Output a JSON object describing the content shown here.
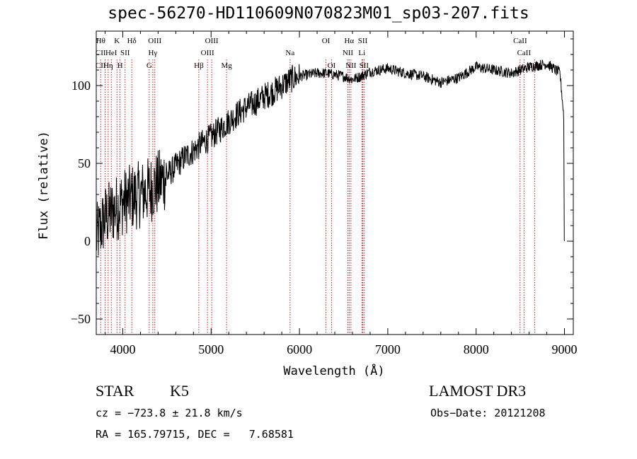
{
  "chart_data": {
    "type": "line",
    "title": "spec-56270-HD110609N070823M01_sp03-207.fits",
    "xlabel": "Wavelength (Å)",
    "ylabel": "Flux (relative)",
    "xlim": [
      3700,
      9100
    ],
    "ylim": [
      -60,
      135
    ],
    "xticks": [
      4000,
      5000,
      6000,
      7000,
      8000,
      9000
    ],
    "yticks": [
      -50,
      0,
      50,
      100
    ],
    "xtick_labels": [
      "4000",
      "5000",
      "6000",
      "7000",
      "8000",
      "9000"
    ],
    "ytick_labels": [
      "−50",
      "0",
      "50",
      "100"
    ],
    "continuum": {
      "x": [
        3700,
        3800,
        3900,
        4000,
        4100,
        4200,
        4300,
        4400,
        4500,
        4600,
        4700,
        4800,
        4900,
        5000,
        5100,
        5200,
        5300,
        5400,
        5500,
        5600,
        5700,
        5800,
        5900,
        6000,
        6100,
        6200,
        6300,
        6400,
        6500,
        6600,
        6700,
        6800,
        6900,
        7000,
        7200,
        7400,
        7600,
        7800,
        8000,
        8200,
        8400,
        8600,
        8800,
        8950,
        9000
      ],
      "y": [
        2,
        15,
        20,
        25,
        28,
        30,
        33,
        37,
        42,
        48,
        54,
        58,
        63,
        67,
        72,
        77,
        82,
        86,
        89,
        93,
        96,
        100,
        104,
        106,
        107,
        108,
        108,
        107,
        106,
        104,
        106,
        109,
        110,
        111,
        108,
        106,
        102,
        105,
        112,
        110,
        108,
        112,
        114,
        108,
        75
      ]
    },
    "lines": [
      {
        "wl": 3750,
        "labels": [
          {
            "text": "Hθ",
            "row": 0
          },
          {
            "text": "CII",
            "row": 1
          },
          {
            "text": "CII",
            "row": 2
          }
        ]
      },
      {
        "wl": 3800,
        "labels": []
      },
      {
        "wl": 3835,
        "labels": [
          {
            "text": "Hη",
            "row": 2
          }
        ]
      },
      {
        "wl": 3870,
        "labels": [
          {
            "text": "HeI",
            "row": 1
          }
        ]
      },
      {
        "wl": 3934,
        "labels": [
          {
            "text": "K",
            "row": 0
          }
        ]
      },
      {
        "wl": 3969,
        "labels": [
          {
            "text": "H",
            "row": 2
          }
        ]
      },
      {
        "wl": 4026,
        "labels": [
          {
            "text": "SII",
            "row": 1
          }
        ]
      },
      {
        "wl": 4102,
        "labels": [
          {
            "text": "Hδ",
            "row": 0
          }
        ]
      },
      {
        "wl": 4300,
        "labels": [
          {
            "text": "G",
            "row": 2
          }
        ]
      },
      {
        "wl": 4340,
        "labels": [
          {
            "text": "Hγ",
            "row": 1
          }
        ]
      },
      {
        "wl": 4363,
        "labels": [
          {
            "text": "OIII",
            "row": 0
          }
        ]
      },
      {
        "wl": 4861,
        "labels": [
          {
            "text": "Hβ",
            "row": 2
          }
        ]
      },
      {
        "wl": 4959,
        "labels": [
          {
            "text": "OIII",
            "row": 1
          }
        ]
      },
      {
        "wl": 5007,
        "labels": [
          {
            "text": "OIII",
            "row": 0
          }
        ]
      },
      {
        "wl": 5175,
        "labels": [
          {
            "text": "Mg",
            "row": 2
          }
        ]
      },
      {
        "wl": 5894,
        "labels": [
          {
            "text": "Na",
            "row": 1
          }
        ]
      },
      {
        "wl": 6300,
        "labels": [
          {
            "text": "OI",
            "row": 0
          }
        ]
      },
      {
        "wl": 6363,
        "labels": [
          {
            "text": "OI",
            "row": 2
          }
        ]
      },
      {
        "wl": 6548,
        "labels": [
          {
            "text": "NII",
            "row": 1
          }
        ]
      },
      {
        "wl": 6563,
        "labels": [
          {
            "text": "Hα",
            "row": 0
          }
        ]
      },
      {
        "wl": 6583,
        "labels": [
          {
            "text": "NII",
            "row": 2
          }
        ]
      },
      {
        "wl": 6707,
        "labels": [
          {
            "text": "Li",
            "row": 1
          }
        ]
      },
      {
        "wl": 6716,
        "labels": [
          {
            "text": "SII",
            "row": 0
          }
        ]
      },
      {
        "wl": 6731,
        "labels": [
          {
            "text": "SII",
            "row": 2
          }
        ]
      },
      {
        "wl": 8498,
        "labels": [
          {
            "text": "CaII",
            "row": 0
          }
        ]
      },
      {
        "wl": 8542,
        "labels": [
          {
            "text": "CaII",
            "row": 1
          }
        ]
      },
      {
        "wl": 8662,
        "labels": [
          {
            "text": "CaII",
            "row": 2
          }
        ]
      }
    ]
  },
  "info": {
    "object_class": "STAR",
    "subclass": "K5",
    "survey": "LAMOST DR3",
    "cz": "cz = −723.8 ± 21.8 km/s",
    "obs_date": "Obs−Date: 20121208",
    "coords": "RA = 165.79715, DEC =   7.68581"
  },
  "colors": {
    "spectrum": "#000000",
    "line_markers": "#cc0000",
    "axes": "#000000"
  }
}
